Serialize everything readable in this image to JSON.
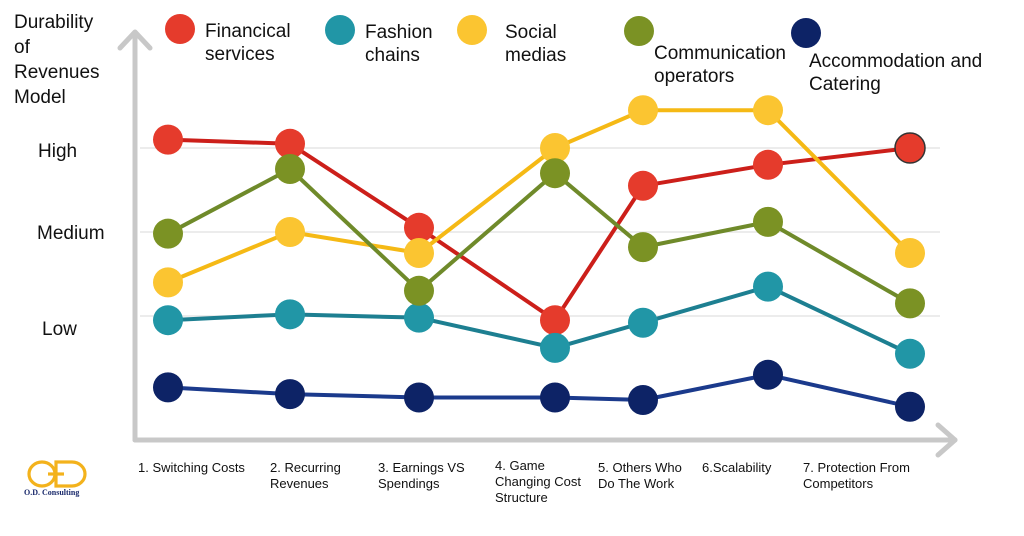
{
  "chart_data": {
    "type": "line",
    "title": "",
    "ylabel": [
      "Durability",
      "of",
      "Revenues",
      "Model"
    ],
    "y_levels": [
      {
        "label": "High",
        "value": 3
      },
      {
        "label": "Medium",
        "value": 2
      },
      {
        "label": "Low",
        "value": 1
      }
    ],
    "ylim": [
      0,
      4.1
    ],
    "grid": true,
    "legend_position": "top",
    "categories": [
      [
        "1. Switching Costs"
      ],
      [
        "2. Recurring",
        "Revenues"
      ],
      [
        "3. Earnings VS",
        "Spendings"
      ],
      [
        "4. Game",
        "Changing Cost",
        "Structure"
      ],
      [
        "5. Others Who",
        "Do The Work"
      ],
      [
        "6.Scalability"
      ],
      [
        "7. Protection From",
        "Competitors"
      ]
    ],
    "series": [
      {
        "name": [
          "Financical",
          "services"
        ],
        "color": "#e53b2c",
        "line_color": "#cc1f1a",
        "values": [
          3.1,
          3.05,
          2.05,
          0.95,
          2.55,
          2.8,
          3.0
        ]
      },
      {
        "name": [
          "Fashion",
          "chains"
        ],
        "color": "#2196a6",
        "line_color": "#1d7f91",
        "values": [
          0.95,
          1.02,
          0.98,
          0.62,
          0.92,
          1.35,
          0.55
        ]
      },
      {
        "name": [
          "Social",
          "medias"
        ],
        "color": "#fbc531",
        "line_color": "#f5b915",
        "values": [
          1.4,
          2.0,
          1.75,
          3.0,
          3.45,
          3.45,
          1.75
        ]
      },
      {
        "name": [
          "Communication",
          "operators"
        ],
        "color": "#7b9224",
        "line_color": "#6f8a2a",
        "values": [
          1.98,
          2.75,
          1.3,
          2.7,
          1.82,
          2.12,
          1.15
        ]
      },
      {
        "name": [
          "Accommodation and",
          "Catering"
        ],
        "color": "#0d2366",
        "line_color": "#1b3a8c",
        "values": [
          0.15,
          0.07,
          0.03,
          0.03,
          0.0,
          0.3,
          -0.08
        ]
      }
    ]
  },
  "branding": {
    "logo_letters": "OD",
    "logo_text": "O.D. Consulting"
  }
}
